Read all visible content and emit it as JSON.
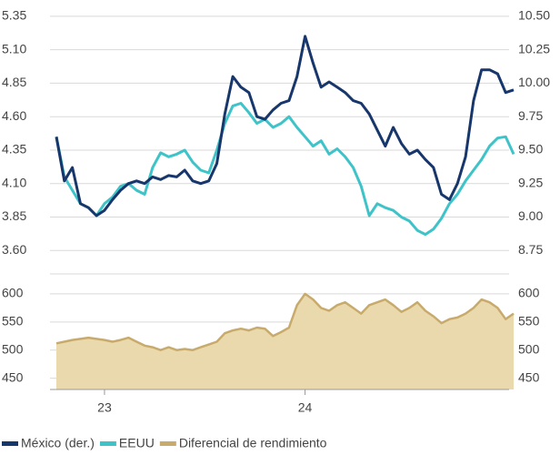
{
  "chart_data": [
    {
      "type": "line",
      "ylim": [
        3.5,
        5.39
      ],
      "yticks": [
        5.35,
        {
          "value": 5.1,
          "label": "5.10"
        },
        4.85,
        {
          "value": 4.6,
          "label": "4.60"
        },
        4.35,
        {
          "value": 4.1,
          "label": "4.10"
        },
        3.85,
        {
          "value": 3.6,
          "label": "3.60"
        }
      ],
      "y2lim": [
        8.65,
        10.54
      ],
      "y2ticks": [
        {
          "value": 10.5,
          "label": "10.50"
        },
        10.25,
        {
          "value": 10,
          "label": "10.00"
        },
        9.75,
        {
          "value": 9.5,
          "label": "9.50"
        },
        9.25,
        {
          "value": 9,
          "label": "9.00"
        },
        8.75
      ],
      "grid": true,
      "series": [
        {
          "name": "México (der.)",
          "color": "#17366b",
          "axis": "y2",
          "values": [
            9.6,
            9.27,
            9.37,
            9.1,
            9.07,
            9.01,
            9.05,
            9.13,
            9.2,
            9.25,
            9.27,
            9.25,
            9.3,
            9.28,
            9.31,
            9.3,
            9.35,
            9.27,
            9.25,
            9.27,
            9.4,
            9.77,
            10.05,
            9.97,
            9.93,
            9.75,
            9.73,
            9.8,
            9.85,
            9.87,
            10.05,
            10.35,
            10.15,
            9.97,
            10.01,
            9.97,
            9.93,
            9.87,
            9.85,
            9.77,
            9.65,
            9.53,
            9.67,
            9.55,
            9.47,
            9.5,
            9.43,
            9.37,
            9.17,
            9.13,
            9.25,
            9.45,
            9.87,
            10.1,
            10.1,
            10.07,
            9.93,
            9.95
          ]
        },
        {
          "name": "EEUU",
          "color": "#3ec3c9",
          "values": [
            4.45,
            4.15,
            4.05,
            3.95,
            3.92,
            3.86,
            3.95,
            4.0,
            4.08,
            4.1,
            4.05,
            4.02,
            4.22,
            4.33,
            4.3,
            4.32,
            4.35,
            4.26,
            4.2,
            4.18,
            4.35,
            4.55,
            4.68,
            4.7,
            4.63,
            4.55,
            4.58,
            4.52,
            4.55,
            4.6,
            4.52,
            4.45,
            4.38,
            4.42,
            4.32,
            4.36,
            4.3,
            4.22,
            4.08,
            3.86,
            3.95,
            3.92,
            3.9,
            3.85,
            3.82,
            3.75,
            3.72,
            3.76,
            3.84,
            3.95,
            4.02,
            4.12,
            4.2,
            4.28,
            4.38,
            4.44,
            4.45,
            4.32
          ]
        }
      ]
    },
    {
      "type": "area",
      "categories": [
        null,
        null,
        null,
        null,
        null,
        null,
        "23",
        null,
        null,
        null,
        null,
        null,
        null,
        null,
        null,
        null,
        null,
        null,
        null,
        null,
        null,
        null,
        null,
        null,
        null,
        null,
        null,
        null,
        null,
        null,
        null,
        "24",
        null,
        null,
        null,
        null,
        null,
        null,
        null,
        null,
        null,
        null,
        null,
        null,
        null,
        null,
        null,
        null,
        null,
        null,
        null,
        null,
        null,
        null,
        null,
        null,
        null,
        null
      ],
      "ylim": [
        430,
        629
      ],
      "yticks": [
        600,
        550,
        500,
        450
      ],
      "grid": true,
      "series": [
        {
          "name": "Diferencial de rendimiento",
          "color": "#c8ab6c",
          "fill": "#ead9ad",
          "values": [
            512,
            515,
            518,
            520,
            522,
            520,
            518,
            515,
            518,
            522,
            515,
            508,
            505,
            500,
            505,
            500,
            502,
            500,
            505,
            510,
            515,
            530,
            535,
            538,
            535,
            540,
            538,
            525,
            532,
            540,
            580,
            600,
            590,
            575,
            570,
            580,
            585,
            575,
            565,
            580,
            585,
            590,
            580,
            568,
            575,
            585,
            570,
            560,
            548,
            555,
            558,
            565,
            575,
            590,
            585,
            575,
            555,
            565
          ]
        }
      ]
    }
  ]
}
